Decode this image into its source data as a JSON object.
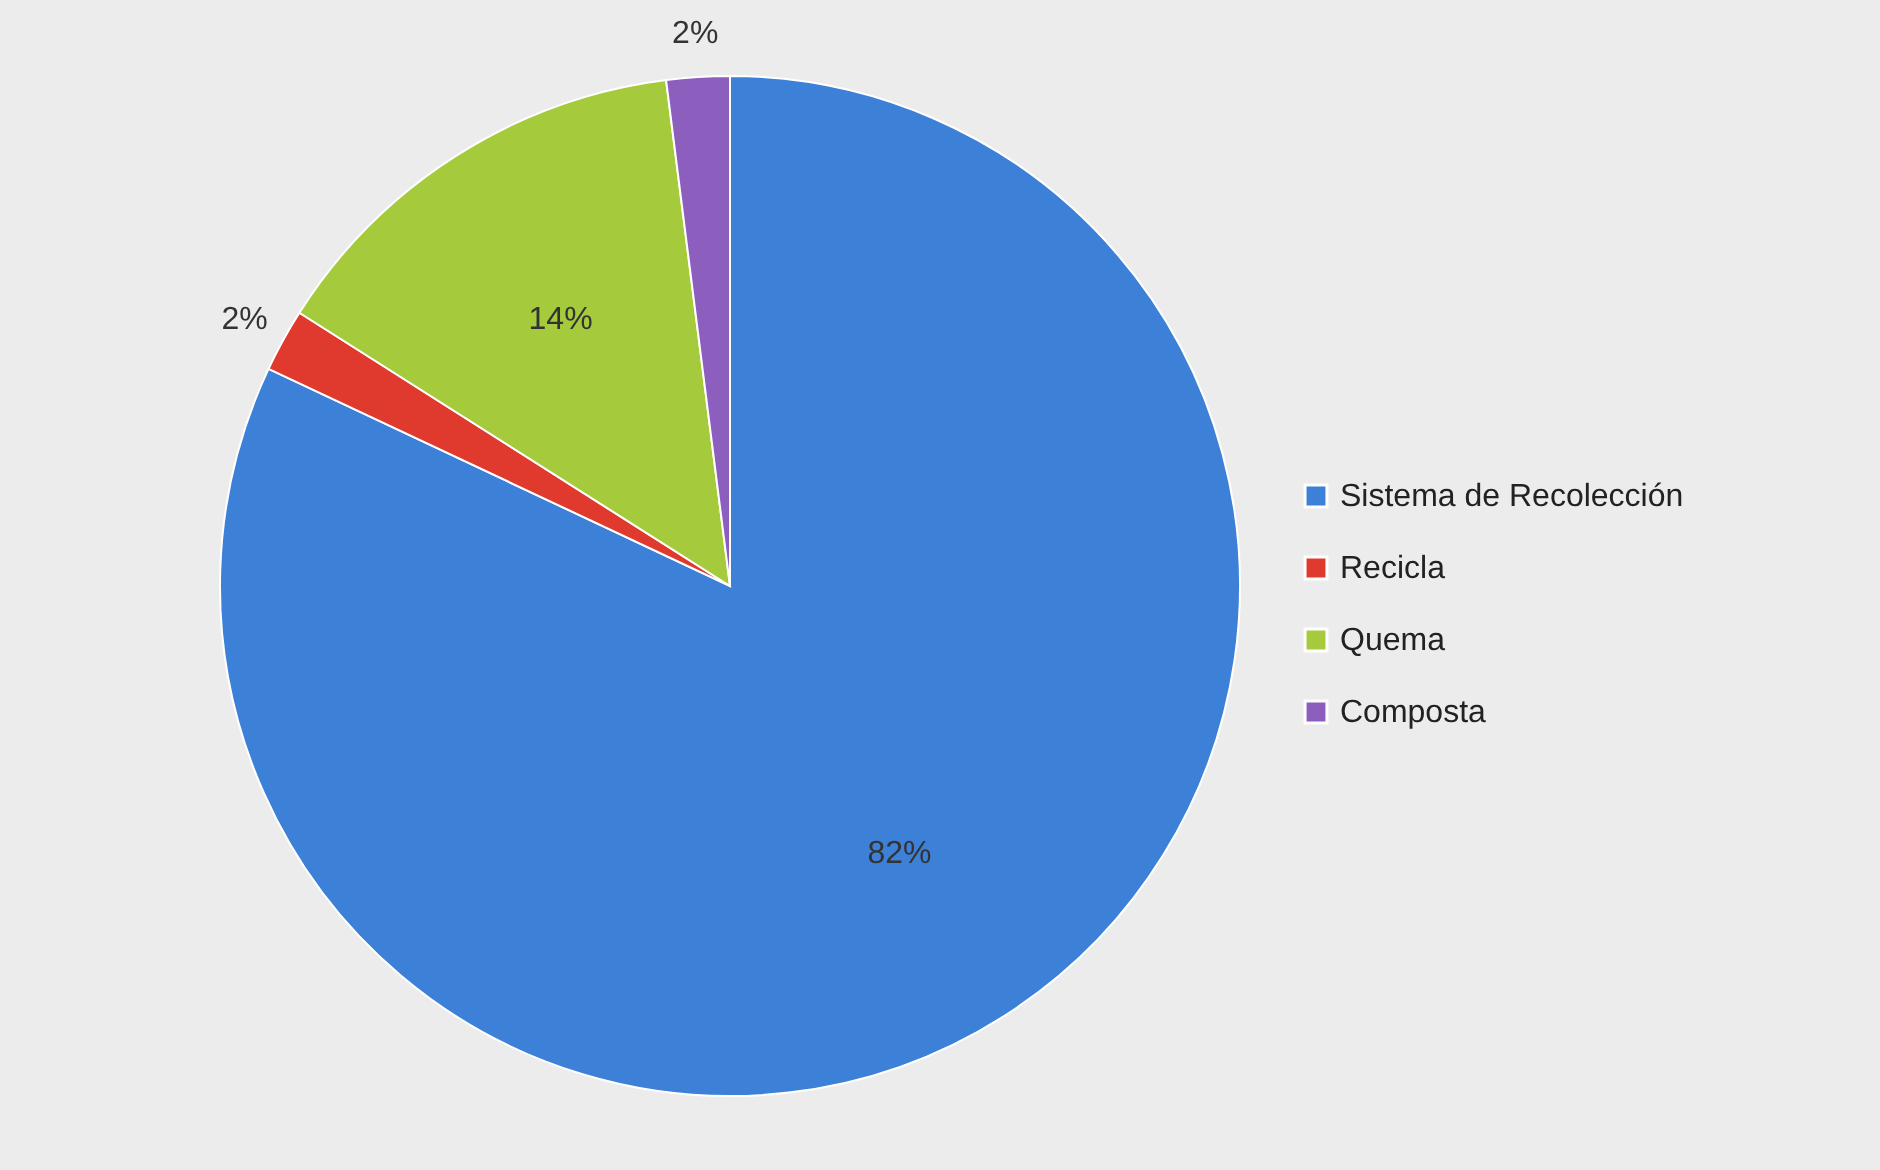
{
  "chart_data": {
    "type": "pie",
    "categories": [
      "Sistema de Recolección",
      "Recicla",
      "Quema",
      "Composta"
    ],
    "values": [
      82,
      2,
      14,
      2
    ],
    "colors": [
      "#3d80d8",
      "#e0392e",
      "#a5cb3c",
      "#8c5fbf"
    ],
    "value_labels": [
      "82%",
      "2%",
      "14%",
      "2%"
    ],
    "legend": "right"
  }
}
